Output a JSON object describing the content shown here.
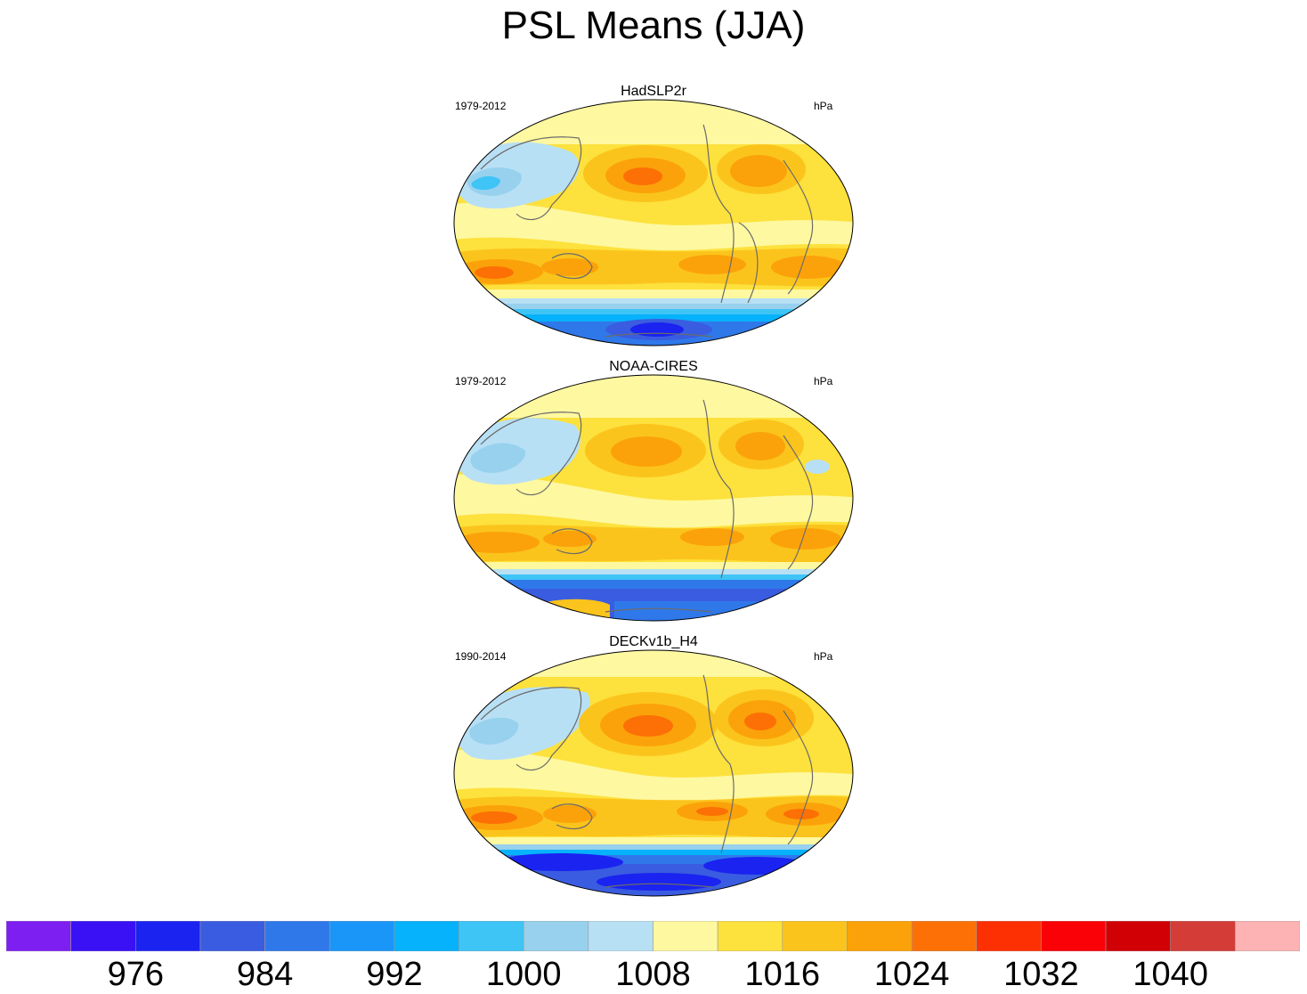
{
  "figure": {
    "title": "PSL Means (JJA)"
  },
  "panels": [
    {
      "title": "HadSLP2r",
      "period": "1979-2012",
      "units": "hPa"
    },
    {
      "title": "NOAA-CIRES",
      "period": "1979-2012",
      "units": "hPa"
    },
    {
      "title": "DECKv1b_H4",
      "period": "1990-2014",
      "units": "hPa"
    }
  ],
  "colorbar": {
    "colors": [
      "#7d1ff0",
      "#3a10f5",
      "#1a23f0",
      "#3a5ce0",
      "#2f78ea",
      "#1a96f8",
      "#06b2fb",
      "#3fc4f6",
      "#97d1ee",
      "#b8e0f5",
      "#fef8a0",
      "#fde13c",
      "#fbc41c",
      "#fba20a",
      "#fc7005",
      "#fd3004",
      "#f90106",
      "#d10005",
      "#d43c38",
      "#fdb3b3"
    ],
    "tick_labels": [
      "976",
      "984",
      "992",
      "1000",
      "1008",
      "1016",
      "1024",
      "1032",
      "1040"
    ]
  },
  "chart_data": {
    "type": "heatmap",
    "title": "PSL Means (JJA)",
    "variable": "PSL",
    "season": "JJA",
    "units": "hPa",
    "contour_levels": [
      972,
      976,
      980,
      984,
      988,
      992,
      996,
      1000,
      1004,
      1008,
      1012,
      1016,
      1020,
      1024,
      1028,
      1032,
      1036,
      1040,
      1044
    ],
    "colorbar_ticks": [
      976,
      984,
      992,
      1000,
      1008,
      1016,
      1024,
      1032,
      1040
    ],
    "maps": [
      {
        "name": "HadSLP2r",
        "period": "1979-2012"
      },
      {
        "name": "NOAA-CIRES",
        "period": "1979-2012"
      },
      {
        "name": "DECKv1b_H4",
        "period": "1990-2014"
      }
    ]
  }
}
